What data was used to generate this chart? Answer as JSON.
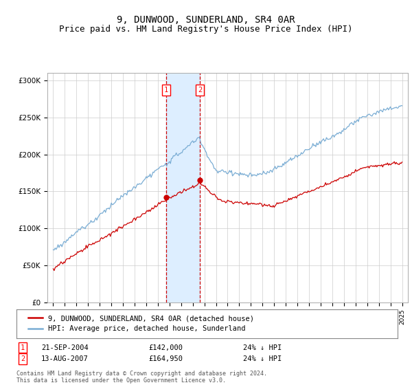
{
  "title": "9, DUNWOOD, SUNDERLAND, SR4 0AR",
  "subtitle": "Price paid vs. HM Land Registry's House Price Index (HPI)",
  "ylim": [
    0,
    310000
  ],
  "yticks": [
    0,
    50000,
    100000,
    150000,
    200000,
    250000,
    300000
  ],
  "ytick_labels": [
    "£0",
    "£50K",
    "£100K",
    "£150K",
    "£200K",
    "£250K",
    "£300K"
  ],
  "hpi_color": "#7aadd4",
  "price_color": "#cc0000",
  "sale1_date_label": "21-SEP-2004",
  "sale1_price": 142000,
  "sale1_price_label": "£142,000",
  "sale1_hpi_label": "24% ↓ HPI",
  "sale1_x": 2004.72,
  "sale2_date_label": "13-AUG-2007",
  "sale2_price": 164950,
  "sale2_price_label": "£164,950",
  "sale2_hpi_label": "24% ↓ HPI",
  "sale2_x": 2007.62,
  "shade_color": "#ddeeff",
  "dashed_color": "#cc0000",
  "legend_label1": "9, DUNWOOD, SUNDERLAND, SR4 0AR (detached house)",
  "legend_label2": "HPI: Average price, detached house, Sunderland",
  "footer": "Contains HM Land Registry data © Crown copyright and database right 2024.\nThis data is licensed under the Open Government Licence v3.0.",
  "title_fontsize": 10,
  "subtitle_fontsize": 9,
  "background_color": "#ffffff"
}
